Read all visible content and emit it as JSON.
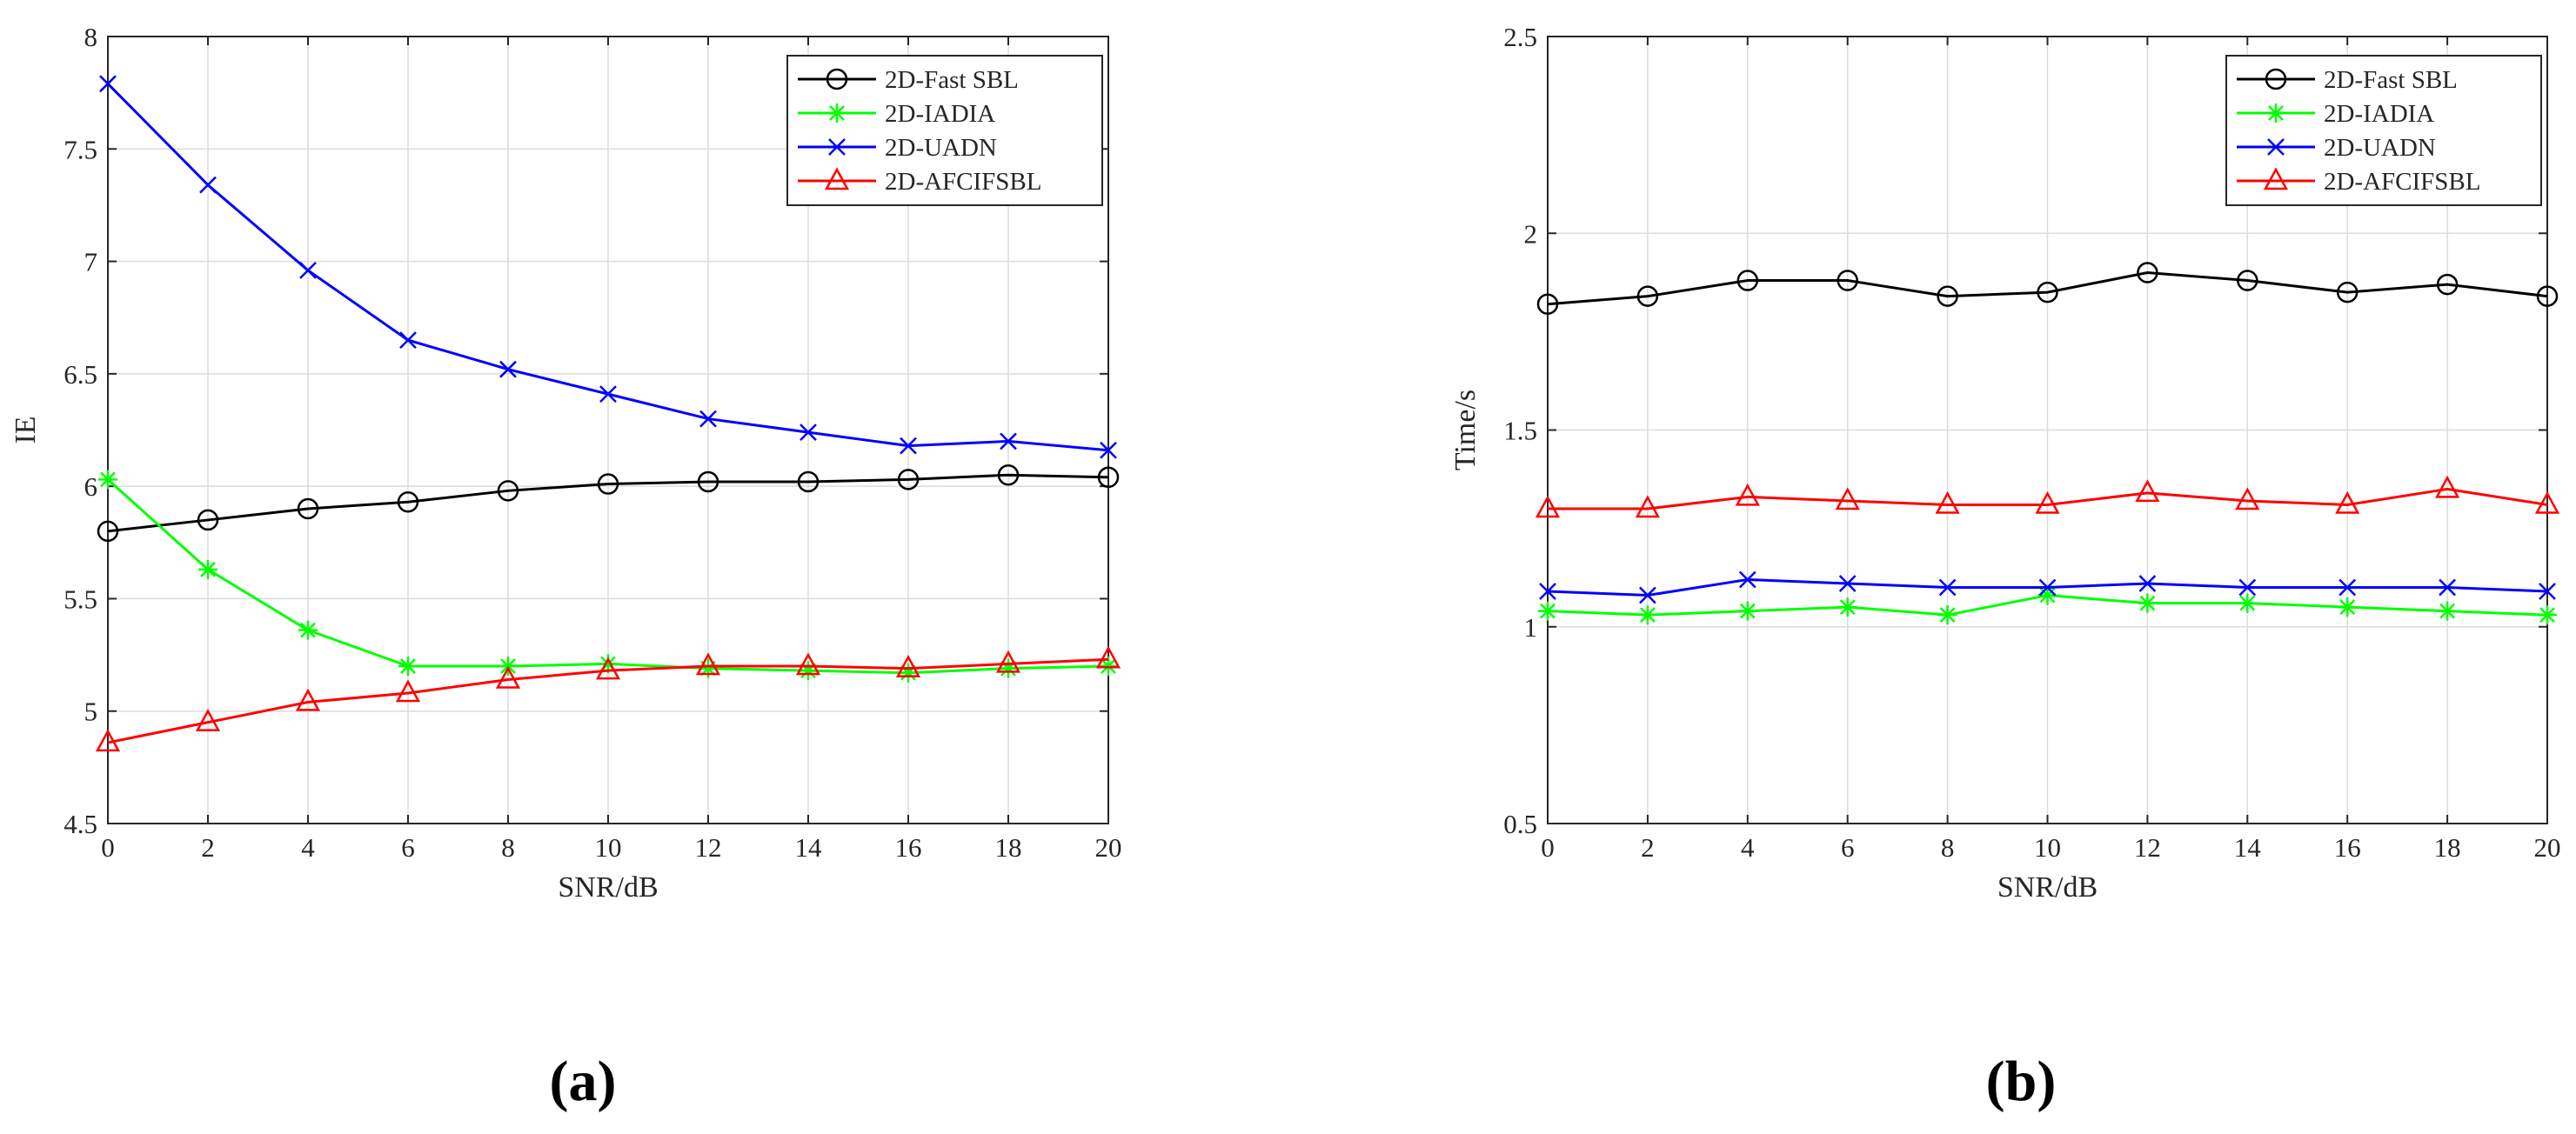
{
  "chart_data": [
    {
      "type": "line",
      "panel_label": "(a)",
      "xlabel": "SNR/dB",
      "ylabel": "IE",
      "xlim": [
        0,
        20
      ],
      "ylim": [
        4.5,
        8
      ],
      "xticks": [
        0,
        2,
        4,
        6,
        8,
        10,
        12,
        14,
        16,
        18,
        20
      ],
      "yticks": [
        4.5,
        5,
        5.5,
        6,
        6.5,
        7,
        7.5,
        8
      ],
      "xtick_labels": [
        "0",
        "2",
        "4",
        "6",
        "8",
        "10",
        "12",
        "14",
        "16",
        "18",
        "20"
      ],
      "ytick_labels": [
        "4.5",
        "5",
        "5.5",
        "6",
        "6.5",
        "7",
        "7.5",
        "8"
      ],
      "grid": true,
      "legend_position": "top-right",
      "x": [
        0,
        2,
        4,
        6,
        8,
        10,
        12,
        14,
        16,
        18,
        20
      ],
      "series": [
        {
          "name": "2D-Fast SBL",
          "color": "#000000",
          "marker": "circle",
          "values": [
            5.8,
            5.85,
            5.9,
            5.93,
            5.98,
            6.01,
            6.02,
            6.02,
            6.03,
            6.05,
            6.04
          ]
        },
        {
          "name": "2D-IADIA",
          "color": "#00ff00",
          "marker": "asterisk",
          "values": [
            6.03,
            5.63,
            5.36,
            5.2,
            5.2,
            5.21,
            5.19,
            5.18,
            5.17,
            5.19,
            5.2
          ]
        },
        {
          "name": "2D-UADN",
          "color": "#0000ff",
          "marker": "x",
          "values": [
            7.79,
            7.34,
            6.96,
            6.65,
            6.52,
            6.41,
            6.3,
            6.24,
            6.18,
            6.2,
            6.16
          ]
        },
        {
          "name": "2D-AFCIFSBL",
          "color": "#ff0000",
          "marker": "triangle",
          "values": [
            4.86,
            4.95,
            5.04,
            5.08,
            5.14,
            5.18,
            5.2,
            5.2,
            5.19,
            5.21,
            5.23
          ]
        }
      ]
    },
    {
      "type": "line",
      "panel_label": "(b)",
      "xlabel": "SNR/dB",
      "ylabel": "Time/s",
      "xlim": [
        0,
        20
      ],
      "ylim": [
        0.5,
        2.5
      ],
      "xticks": [
        0,
        2,
        4,
        6,
        8,
        10,
        12,
        14,
        16,
        18,
        20
      ],
      "yticks": [
        0.5,
        1,
        1.5,
        2,
        2.5
      ],
      "xtick_labels": [
        "0",
        "2",
        "4",
        "6",
        "8",
        "10",
        "12",
        "14",
        "16",
        "18",
        "20"
      ],
      "ytick_labels": [
        "0.5",
        "1",
        "1.5",
        "2",
        "2.5"
      ],
      "grid": true,
      "legend_position": "top-right",
      "x": [
        0,
        2,
        4,
        6,
        8,
        10,
        12,
        14,
        16,
        18,
        20
      ],
      "series": [
        {
          "name": "2D-Fast SBL",
          "color": "#000000",
          "marker": "circle",
          "values": [
            1.82,
            1.84,
            1.88,
            1.88,
            1.84,
            1.85,
            1.9,
            1.88,
            1.85,
            1.87,
            1.84
          ]
        },
        {
          "name": "2D-IADIA",
          "color": "#00ff00",
          "marker": "asterisk",
          "values": [
            1.04,
            1.03,
            1.04,
            1.05,
            1.03,
            1.08,
            1.06,
            1.06,
            1.05,
            1.04,
            1.03
          ]
        },
        {
          "name": "2D-UADN",
          "color": "#0000ff",
          "marker": "x",
          "values": [
            1.09,
            1.08,
            1.12,
            1.11,
            1.1,
            1.1,
            1.11,
            1.1,
            1.1,
            1.1,
            1.09
          ]
        },
        {
          "name": "2D-AFCIFSBL",
          "color": "#ff0000",
          "marker": "triangle",
          "values": [
            1.3,
            1.3,
            1.33,
            1.32,
            1.31,
            1.31,
            1.34,
            1.32,
            1.31,
            1.35,
            1.31
          ]
        }
      ]
    }
  ]
}
